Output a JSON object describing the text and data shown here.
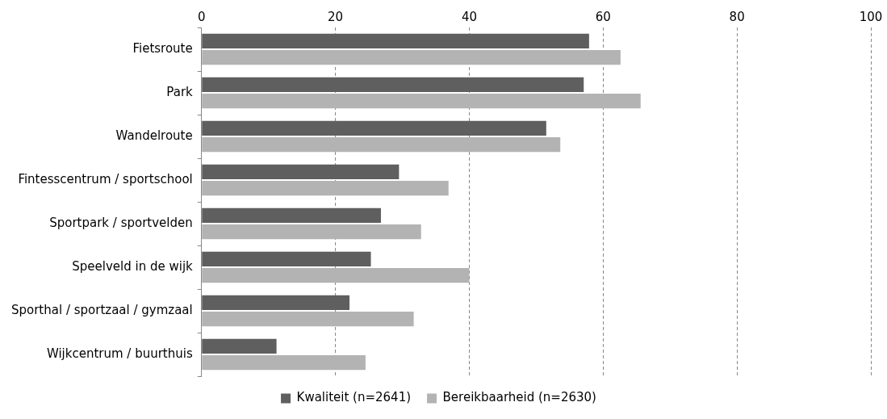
{
  "chart_data": {
    "type": "bar",
    "orientation": "horizontal",
    "categories": [
      "Fietsroute",
      "Park",
      "Wandelroute",
      "Fintesscentrum / sportschool",
      "Sportpark / sportvelden",
      "Speelveld in de wijk",
      "Sporthal / sportzaal / gymzaal",
      "Wijkcentrum / buurthuis"
    ],
    "series": [
      {
        "name": "Kwaliteit (n=2641)",
        "color": "#5f5f5f",
        "values": [
          57.9,
          57.1,
          51.5,
          29.5,
          26.8,
          25.3,
          22.1,
          11.2
        ]
      },
      {
        "name": "Bereikbaarheid (n=2630)",
        "color": "#b3b3b3",
        "values": [
          62.6,
          65.6,
          53.6,
          36.9,
          32.8,
          40.0,
          31.7,
          24.5
        ]
      }
    ],
    "xlim": [
      0,
      100
    ],
    "xticks": [
      0,
      20,
      40,
      60,
      80,
      100
    ],
    "grid": "x",
    "legend": "bottom"
  }
}
